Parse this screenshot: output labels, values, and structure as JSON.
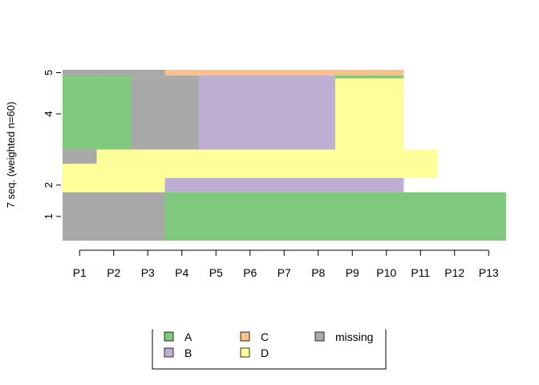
{
  "chart_data": {
    "type": "sequence-index-plot",
    "ylabel": "7 seq. (weighted n=60)",
    "positions": [
      "P1",
      "P2",
      "P3",
      "P4",
      "P5",
      "P6",
      "P7",
      "P8",
      "P9",
      "P10",
      "P11",
      "P12",
      "P13"
    ],
    "y_tick_labels": [
      "1",
      "2",
      "4",
      "5"
    ],
    "states": [
      {
        "code": "A",
        "label": "A",
        "color": "#7fc97f"
      },
      {
        "code": "B",
        "label": "B",
        "color": "#beaed4"
      },
      {
        "code": "C",
        "label": "C",
        "color": "#fdc086"
      },
      {
        "code": "D",
        "label": "D",
        "color": "#ffff99"
      },
      {
        "code": "missing",
        "label": "missing",
        "color": "#a9a9a9"
      }
    ],
    "sequences": [
      {
        "weight": 17,
        "states": [
          "missing",
          "missing",
          "missing",
          "A",
          "A",
          "A",
          "A",
          "A",
          "A",
          "A",
          "A",
          "A",
          "A"
        ]
      },
      {
        "weight": 5,
        "states": [
          "D",
          "D",
          "D",
          "B",
          "B",
          "B",
          "B",
          "B",
          "B",
          "B"
        ]
      },
      {
        "weight": 5,
        "states": [
          "D",
          "D",
          "D",
          "D",
          "D",
          "D",
          "D",
          "D",
          "D",
          "D",
          "D"
        ]
      },
      {
        "weight": 5,
        "states": [
          "missing",
          "D",
          "D",
          "D",
          "D",
          "D",
          "D",
          "D",
          "D",
          "D",
          "D"
        ]
      },
      {
        "weight": 25,
        "states": [
          "A",
          "A",
          "missing",
          "missing",
          "B",
          "B",
          "B",
          "B",
          "D",
          "D"
        ]
      },
      {
        "weight": 1,
        "states": [
          "A",
          "A",
          "missing",
          "missing",
          "B",
          "B",
          "B",
          "B",
          "A",
          "A"
        ]
      },
      {
        "weight": 2,
        "states": [
          "missing",
          "missing",
          "missing",
          "C",
          "C",
          "C",
          "C",
          "C",
          "C",
          "C"
        ]
      }
    ]
  }
}
